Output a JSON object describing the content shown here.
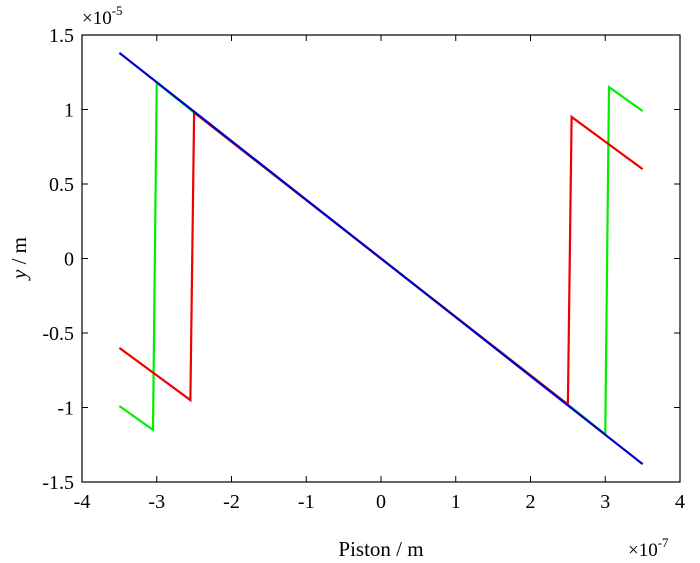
{
  "chart_data": {
    "type": "line",
    "xlabel": "Piston / m",
    "ylabel_italic": "y",
    "ylabel_unit": " / m",
    "x_multiplier_base": "×10",
    "x_multiplier_exp": "-7",
    "y_multiplier_base": "×10",
    "y_multiplier_exp": "-5",
    "xlim": [
      -4,
      4
    ],
    "ylim": [
      -1.5,
      1.5
    ],
    "x_ticks": [
      -4,
      -3,
      -2,
      -1,
      0,
      1,
      2,
      3,
      4
    ],
    "x_tick_labels": [
      "-4",
      "-3",
      "-2",
      "-1",
      "0",
      "1",
      "2",
      "3",
      "4"
    ],
    "y_ticks": [
      -1.5,
      -1,
      -0.5,
      0,
      0.5,
      1,
      1.5
    ],
    "y_tick_labels": [
      "-1.5",
      "-1",
      "-0.5",
      "0",
      "0.5",
      "1",
      "1.5"
    ],
    "grid": false,
    "series": [
      {
        "color": "#00ee00",
        "points": [
          [
            -3.5,
            -0.99
          ],
          [
            -3.05,
            -1.15
          ],
          [
            -3.0,
            1.18
          ],
          [
            -2.5,
            0.98
          ],
          [
            2.5,
            -0.98
          ],
          [
            3.0,
            -1.18
          ],
          [
            3.05,
            1.15
          ],
          [
            3.5,
            0.99
          ]
        ]
      },
      {
        "color": "#ee0000",
        "points": [
          [
            -3.5,
            -0.6
          ],
          [
            -2.55,
            -0.95
          ],
          [
            -2.5,
            0.98
          ],
          [
            2.5,
            -0.98
          ],
          [
            2.55,
            0.95
          ],
          [
            3.5,
            0.6
          ]
        ]
      },
      {
        "color": "#0000cc",
        "points": [
          [
            -3.5,
            1.38
          ],
          [
            3.5,
            -1.38
          ]
        ]
      }
    ]
  }
}
